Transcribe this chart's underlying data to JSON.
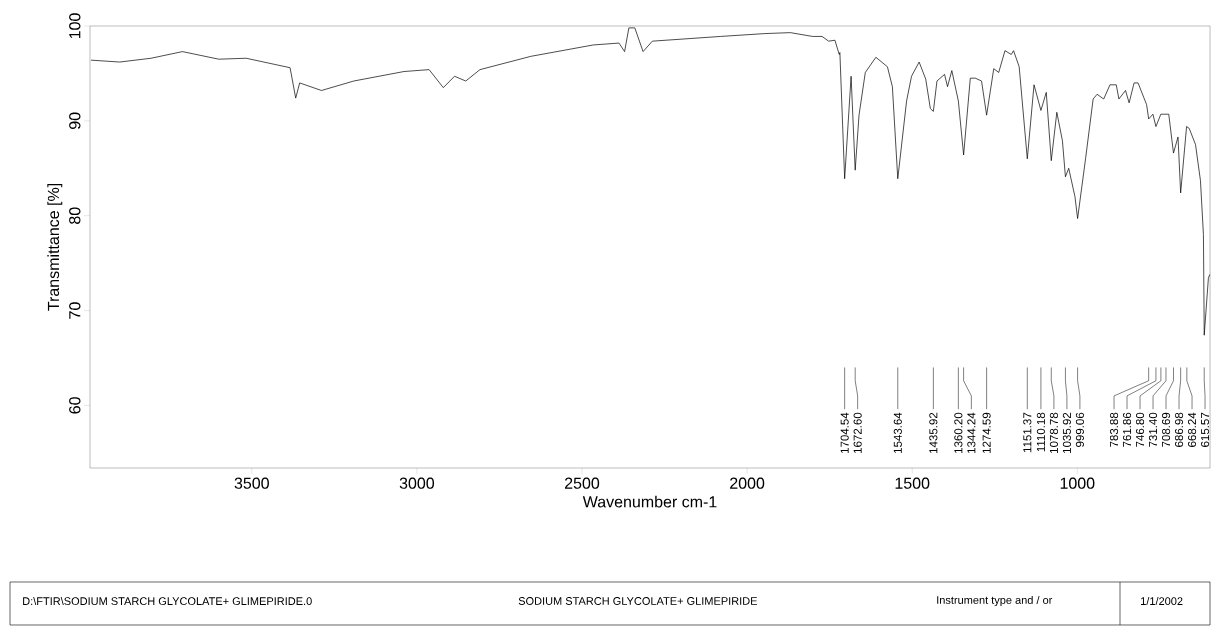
{
  "chart_data": {
    "type": "line",
    "xlabel": "Wavenumber cm-1",
    "ylabel": "Transmittance [%]",
    "xlim": [
      3990,
      598
    ],
    "ylim": [
      53.4,
      100
    ],
    "xticks": [
      3500,
      3000,
      2500,
      2000,
      1500,
      1000
    ],
    "yticks": [
      60,
      70,
      80,
      90,
      100
    ],
    "series": [
      {
        "color": "#000000",
        "x": [
          3987,
          3900,
          3805,
          3710,
          3600,
          3517,
          3384,
          3367,
          3355,
          3289,
          3191,
          3039,
          2963,
          2920,
          2886,
          2852,
          2809,
          2655,
          2466,
          2388,
          2371,
          2358,
          2340,
          2315,
          2287,
          2080,
          1946,
          1869,
          1802,
          1773,
          1753,
          1734,
          1721,
          1719,
          1704.54,
          1685,
          1672.6,
          1661,
          1642,
          1610,
          1575,
          1560,
          1543.64,
          1517,
          1502,
          1479,
          1459,
          1445,
          1435.92,
          1425,
          1402,
          1393,
          1380,
          1360.2,
          1344.24,
          1324,
          1309,
          1290,
          1274.59,
          1253,
          1238,
          1219,
          1200,
          1193,
          1176,
          1151.37,
          1131,
          1110.18,
          1094,
          1078.78,
          1062,
          1045,
          1035.92,
          1026,
          1007,
          999.06,
          975,
          952,
          940,
          920,
          901,
          882,
          874,
          854,
          843,
          828,
          816,
          790,
          783.88,
          771,
          761.86,
          747,
          736,
          723,
          708.69,
          695,
          686.98,
          669,
          661,
          642,
          627,
          618,
          615.57,
          603,
          599
        ],
        "values": [
          96.4,
          96.2,
          96.6,
          97.3,
          96.5,
          96.6,
          95.6,
          92.4,
          94,
          93.2,
          94.2,
          95.2,
          95.4,
          93.5,
          94.7,
          94.2,
          95.4,
          96.8,
          98,
          98.2,
          97.3,
          99.8,
          99.8,
          97.3,
          98.4,
          98.9,
          99.2,
          99.3,
          98.9,
          98.9,
          98.4,
          98.5,
          97,
          97.2,
          83.9,
          94.7,
          84.8,
          90.6,
          95.1,
          96.7,
          95.7,
          93.6,
          83.9,
          92.1,
          94.7,
          96.2,
          94.4,
          91.3,
          91,
          94.2,
          94.9,
          93.6,
          95.3,
          92.1,
          86.4,
          94.5,
          94.5,
          94.2,
          90.6,
          95.5,
          95.1,
          97.4,
          97,
          97.4,
          95.7,
          86,
          93.8,
          91.1,
          93,
          85.8,
          90.9,
          87.9,
          84.1,
          85,
          82,
          79.7,
          86,
          92.3,
          92.8,
          92.3,
          93.8,
          93.8,
          92.3,
          93.2,
          91.9,
          94,
          94,
          91.7,
          90.2,
          90.7,
          89.4,
          90.7,
          90.7,
          90.7,
          86.6,
          88.3,
          82.4,
          89.4,
          89.2,
          87.5,
          83.7,
          78,
          67.4,
          73.4,
          73.8
        ]
      }
    ],
    "annotations": [
      {
        "text": "1704.54",
        "x": 1704.54
      },
      {
        "text": "1672.60",
        "x": 1672.6
      },
      {
        "text": "1543.64",
        "x": 1543.64
      },
      {
        "text": "1435.92",
        "x": 1435.92
      },
      {
        "text": "1360.20",
        "x": 1360.2
      },
      {
        "text": "1344.24",
        "x": 1344.24
      },
      {
        "text": "1274.59",
        "x": 1274.59
      },
      {
        "text": "1151.37",
        "x": 1151.37
      },
      {
        "text": "1110.18",
        "x": 1110.18
      },
      {
        "text": "1078.78",
        "x": 1078.78
      },
      {
        "text": "1035.92",
        "x": 1035.92
      },
      {
        "text": "999.06",
        "x": 999.06
      },
      {
        "text": "783.88",
        "x": 783.88
      },
      {
        "text": "761.86",
        "x": 761.86
      },
      {
        "text": "746.80",
        "x": 746.8
      },
      {
        "text": "731.40",
        "x": 731.4
      },
      {
        "text": "708.69",
        "x": 708.69
      },
      {
        "text": "686.98",
        "x": 686.98
      },
      {
        "text": "668.24",
        "x": 668.24
      },
      {
        "text": "615.57",
        "x": 615.57
      },
      "D:\\FTIR\\SODIUM  STARCH GLYCOLATE+ GLIMEPIRIDE.0",
      "SODIUM  STARCH GLYCOLATE+ GLIMEPIRIDE",
      "Instrument type and / or",
      "1/1/2002"
    ]
  }
}
